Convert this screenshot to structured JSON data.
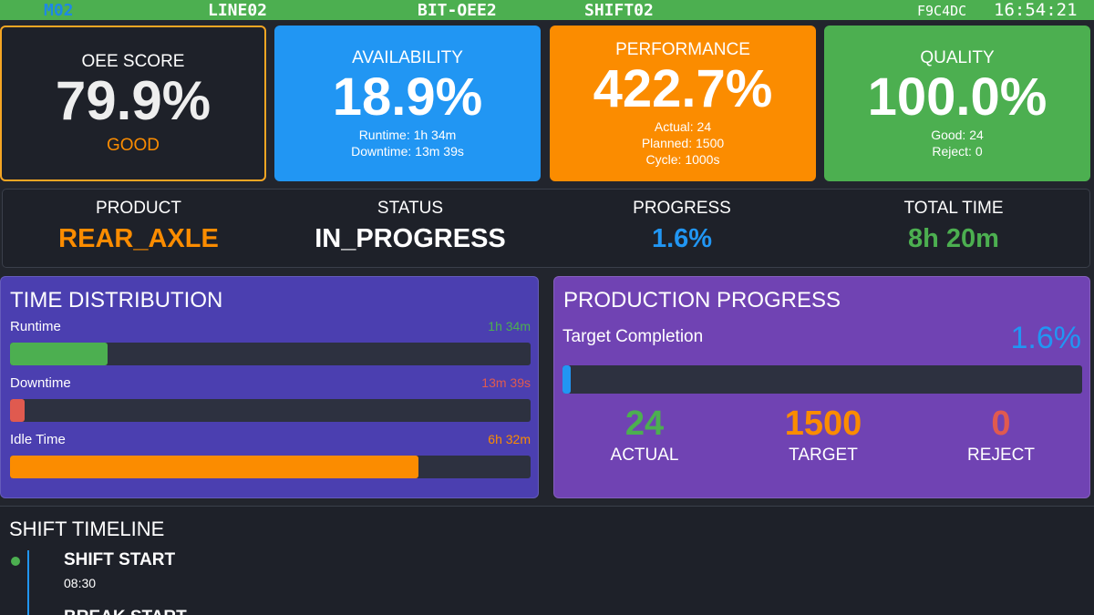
{
  "header": {
    "machine": "M02",
    "line": "LINE02",
    "program": "BIT-OEE2",
    "shift": "SHIFT02",
    "code": "F9C4DC",
    "time": "16:54:21"
  },
  "cards": [
    {
      "title": "OEE SCORE",
      "value": "79.9%",
      "status": "GOOD"
    },
    {
      "title": "AVAILABILITY",
      "value": "18.9%",
      "details": [
        "Runtime: 1h 34m",
        "Downtime: 13m 39s"
      ]
    },
    {
      "title": "PERFORMANCE",
      "value": "422.7%",
      "details": [
        "Actual: 24",
        "Planned: 1500",
        "Cycle: 1000s"
      ]
    },
    {
      "title": "QUALITY",
      "value": "100.0%",
      "details": [
        "Good: 24",
        "Reject: 0"
      ]
    }
  ],
  "info": [
    {
      "label": "PRODUCT",
      "value": "REAR_AXLE"
    },
    {
      "label": "STATUS",
      "value": "IN_PROGRESS"
    },
    {
      "label": "PROGRESS",
      "value": "1.6%"
    },
    {
      "label": "TOTAL TIME",
      "value": "8h 20m"
    }
  ],
  "time_distribution": {
    "title": "TIME DISTRIBUTION",
    "rows": [
      {
        "label": "Runtime",
        "value": "1h 34m"
      },
      {
        "label": "Downtime",
        "value": "13m 39s"
      },
      {
        "label": "Idle Time",
        "value": "6h 32m"
      }
    ]
  },
  "production": {
    "title": "PRODUCTION PROGRESS",
    "label": "Target Completion",
    "value": "1.6%",
    "stats": [
      {
        "value": "24",
        "label": "ACTUAL"
      },
      {
        "value": "1500",
        "label": "TARGET"
      },
      {
        "value": "0",
        "label": "REJECT"
      }
    ]
  },
  "timeline": {
    "title": "SHIFT TIMELINE",
    "events": [
      {
        "label": "SHIFT START",
        "time": "08:30"
      },
      {
        "label": "BREAK START"
      }
    ]
  }
}
